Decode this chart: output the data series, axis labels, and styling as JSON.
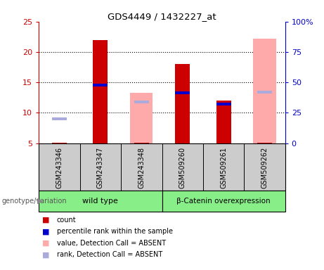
{
  "title": "GDS4449 / 1432227_at",
  "samples": [
    "GSM243346",
    "GSM243347",
    "GSM243348",
    "GSM509260",
    "GSM509261",
    "GSM509262"
  ],
  "count_values": [
    5.1,
    22.0,
    5.1,
    18.0,
    12.0,
    5.1
  ],
  "percentile_rank_values": [
    null,
    14.5,
    null,
    13.3,
    11.4,
    null
  ],
  "absent_value_values": [
    null,
    null,
    13.3,
    null,
    null,
    22.2
  ],
  "absent_rank_values": [
    9.0,
    null,
    11.8,
    null,
    null,
    13.4
  ],
  "ylim_left": [
    5,
    25
  ],
  "ylim_right": [
    0,
    100
  ],
  "yticks_left": [
    5,
    10,
    15,
    20,
    25
  ],
  "yticks_right": [
    0,
    25,
    50,
    75,
    100
  ],
  "ytick_labels_left": [
    "5",
    "10",
    "15",
    "20",
    "25"
  ],
  "ytick_labels_right": [
    "0",
    "25",
    "50",
    "75",
    "100%"
  ],
  "bar_width": 0.55,
  "color_count": "#cc0000",
  "color_percentile": "#0000cc",
  "color_absent_value": "#ffaaaa",
  "color_absent_rank": "#aaaadd",
  "legend_labels": [
    "count",
    "percentile rank within the sample",
    "value, Detection Call = ABSENT",
    "rank, Detection Call = ABSENT"
  ],
  "genotype_label": "genotype/variation",
  "wild_type_label": "wild type",
  "beta_catenin_label": "β-Catenin overexpression",
  "group_color": "#88ee88",
  "sample_bg_color": "#cccccc",
  "plot_bg_color": "#ffffff",
  "axis_left_color": "#cc0000",
  "axis_right_color": "#0000cc",
  "gridline_color": "black",
  "gridline_ticks": [
    10,
    15,
    20
  ]
}
